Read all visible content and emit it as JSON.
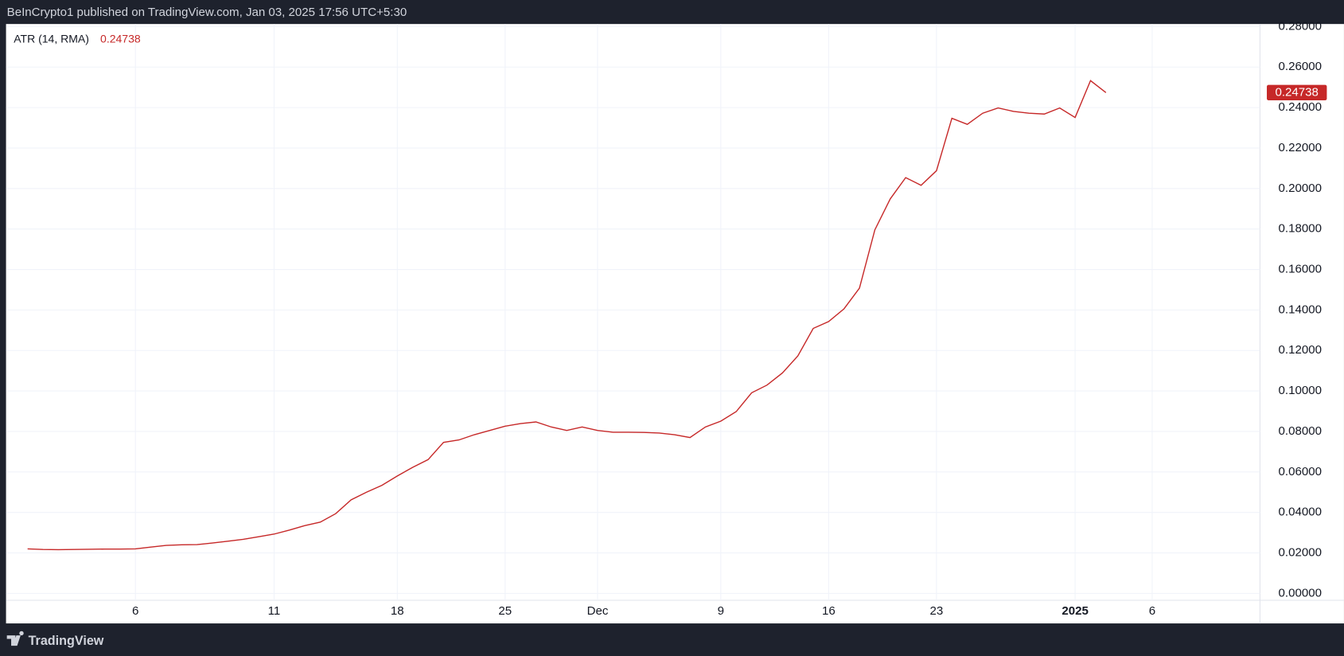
{
  "header": "BeInCrypto1 published on TradingView.com, Jan 03, 2025 17:56 UTC+5:30",
  "footer": "TradingView",
  "chart_data": {
    "type": "line",
    "series": [
      {
        "name": "ATR (14, RMA)",
        "color": "#c62828",
        "values": [
          0.022,
          0.0217,
          0.0216,
          0.0217,
          0.0218,
          0.0219,
          0.0219,
          0.022,
          0.0229,
          0.0237,
          0.024,
          0.0241,
          0.0249,
          0.0258,
          0.0267,
          0.028,
          0.0293,
          0.0313,
          0.0335,
          0.0352,
          0.0394,
          0.0462,
          0.05,
          0.0534,
          0.058,
          0.0623,
          0.0661,
          0.0746,
          0.0758,
          0.0784,
          0.0805,
          0.0826,
          0.0839,
          0.0847,
          0.0822,
          0.0805,
          0.0822,
          0.0805,
          0.0796,
          0.0796,
          0.0795,
          0.0792,
          0.0784,
          0.077,
          0.0822,
          0.0851,
          0.0898,
          0.0991,
          0.1029,
          0.1089,
          0.1173,
          0.1309,
          0.1343,
          0.1406,
          0.1508,
          0.1796,
          0.1949,
          0.2054,
          0.2016,
          0.2088,
          0.2347,
          0.2317,
          0.2372,
          0.2398,
          0.2381,
          0.2372,
          0.2368,
          0.2398,
          0.2351,
          0.2533,
          0.24738
        ]
      }
    ],
    "xlim": [
      -1.4,
      80
    ],
    "xticks": [
      {
        "value": 7,
        "label": "6"
      },
      {
        "value": 16,
        "label": "11"
      },
      {
        "value": 24,
        "label": "18"
      },
      {
        "value": 31,
        "label": "25"
      },
      {
        "value": 37,
        "label": "Dec"
      },
      {
        "value": 45,
        "label": "9"
      },
      {
        "value": 52,
        "label": "16"
      },
      {
        "value": 59,
        "label": "23"
      },
      {
        "value": 68,
        "label": "2025"
      },
      {
        "value": 73,
        "label": "6"
      }
    ],
    "ylim": [
      0,
      0.28
    ],
    "yticks": [
      {
        "value": 0,
        "label": "0.00000"
      },
      {
        "value": 0.02,
        "label": "0.02000"
      },
      {
        "value": 0.04,
        "label": "0.04000"
      },
      {
        "value": 0.06,
        "label": "0.06000"
      },
      {
        "value": 0.08,
        "label": "0.08000"
      },
      {
        "value": 0.1,
        "label": "0.10000"
      },
      {
        "value": 0.12,
        "label": "0.12000"
      },
      {
        "value": 0.14,
        "label": "0.14000"
      },
      {
        "value": 0.16,
        "label": "0.16000"
      },
      {
        "value": 0.18,
        "label": "0.18000"
      },
      {
        "value": 0.2,
        "label": "0.20000"
      },
      {
        "value": 0.22,
        "label": "0.22000"
      },
      {
        "value": 0.24,
        "label": "0.24000"
      },
      {
        "value": 0.26,
        "label": "0.26000"
      },
      {
        "value": 0.28,
        "label": "0.28000"
      }
    ],
    "grid": true
  }
}
